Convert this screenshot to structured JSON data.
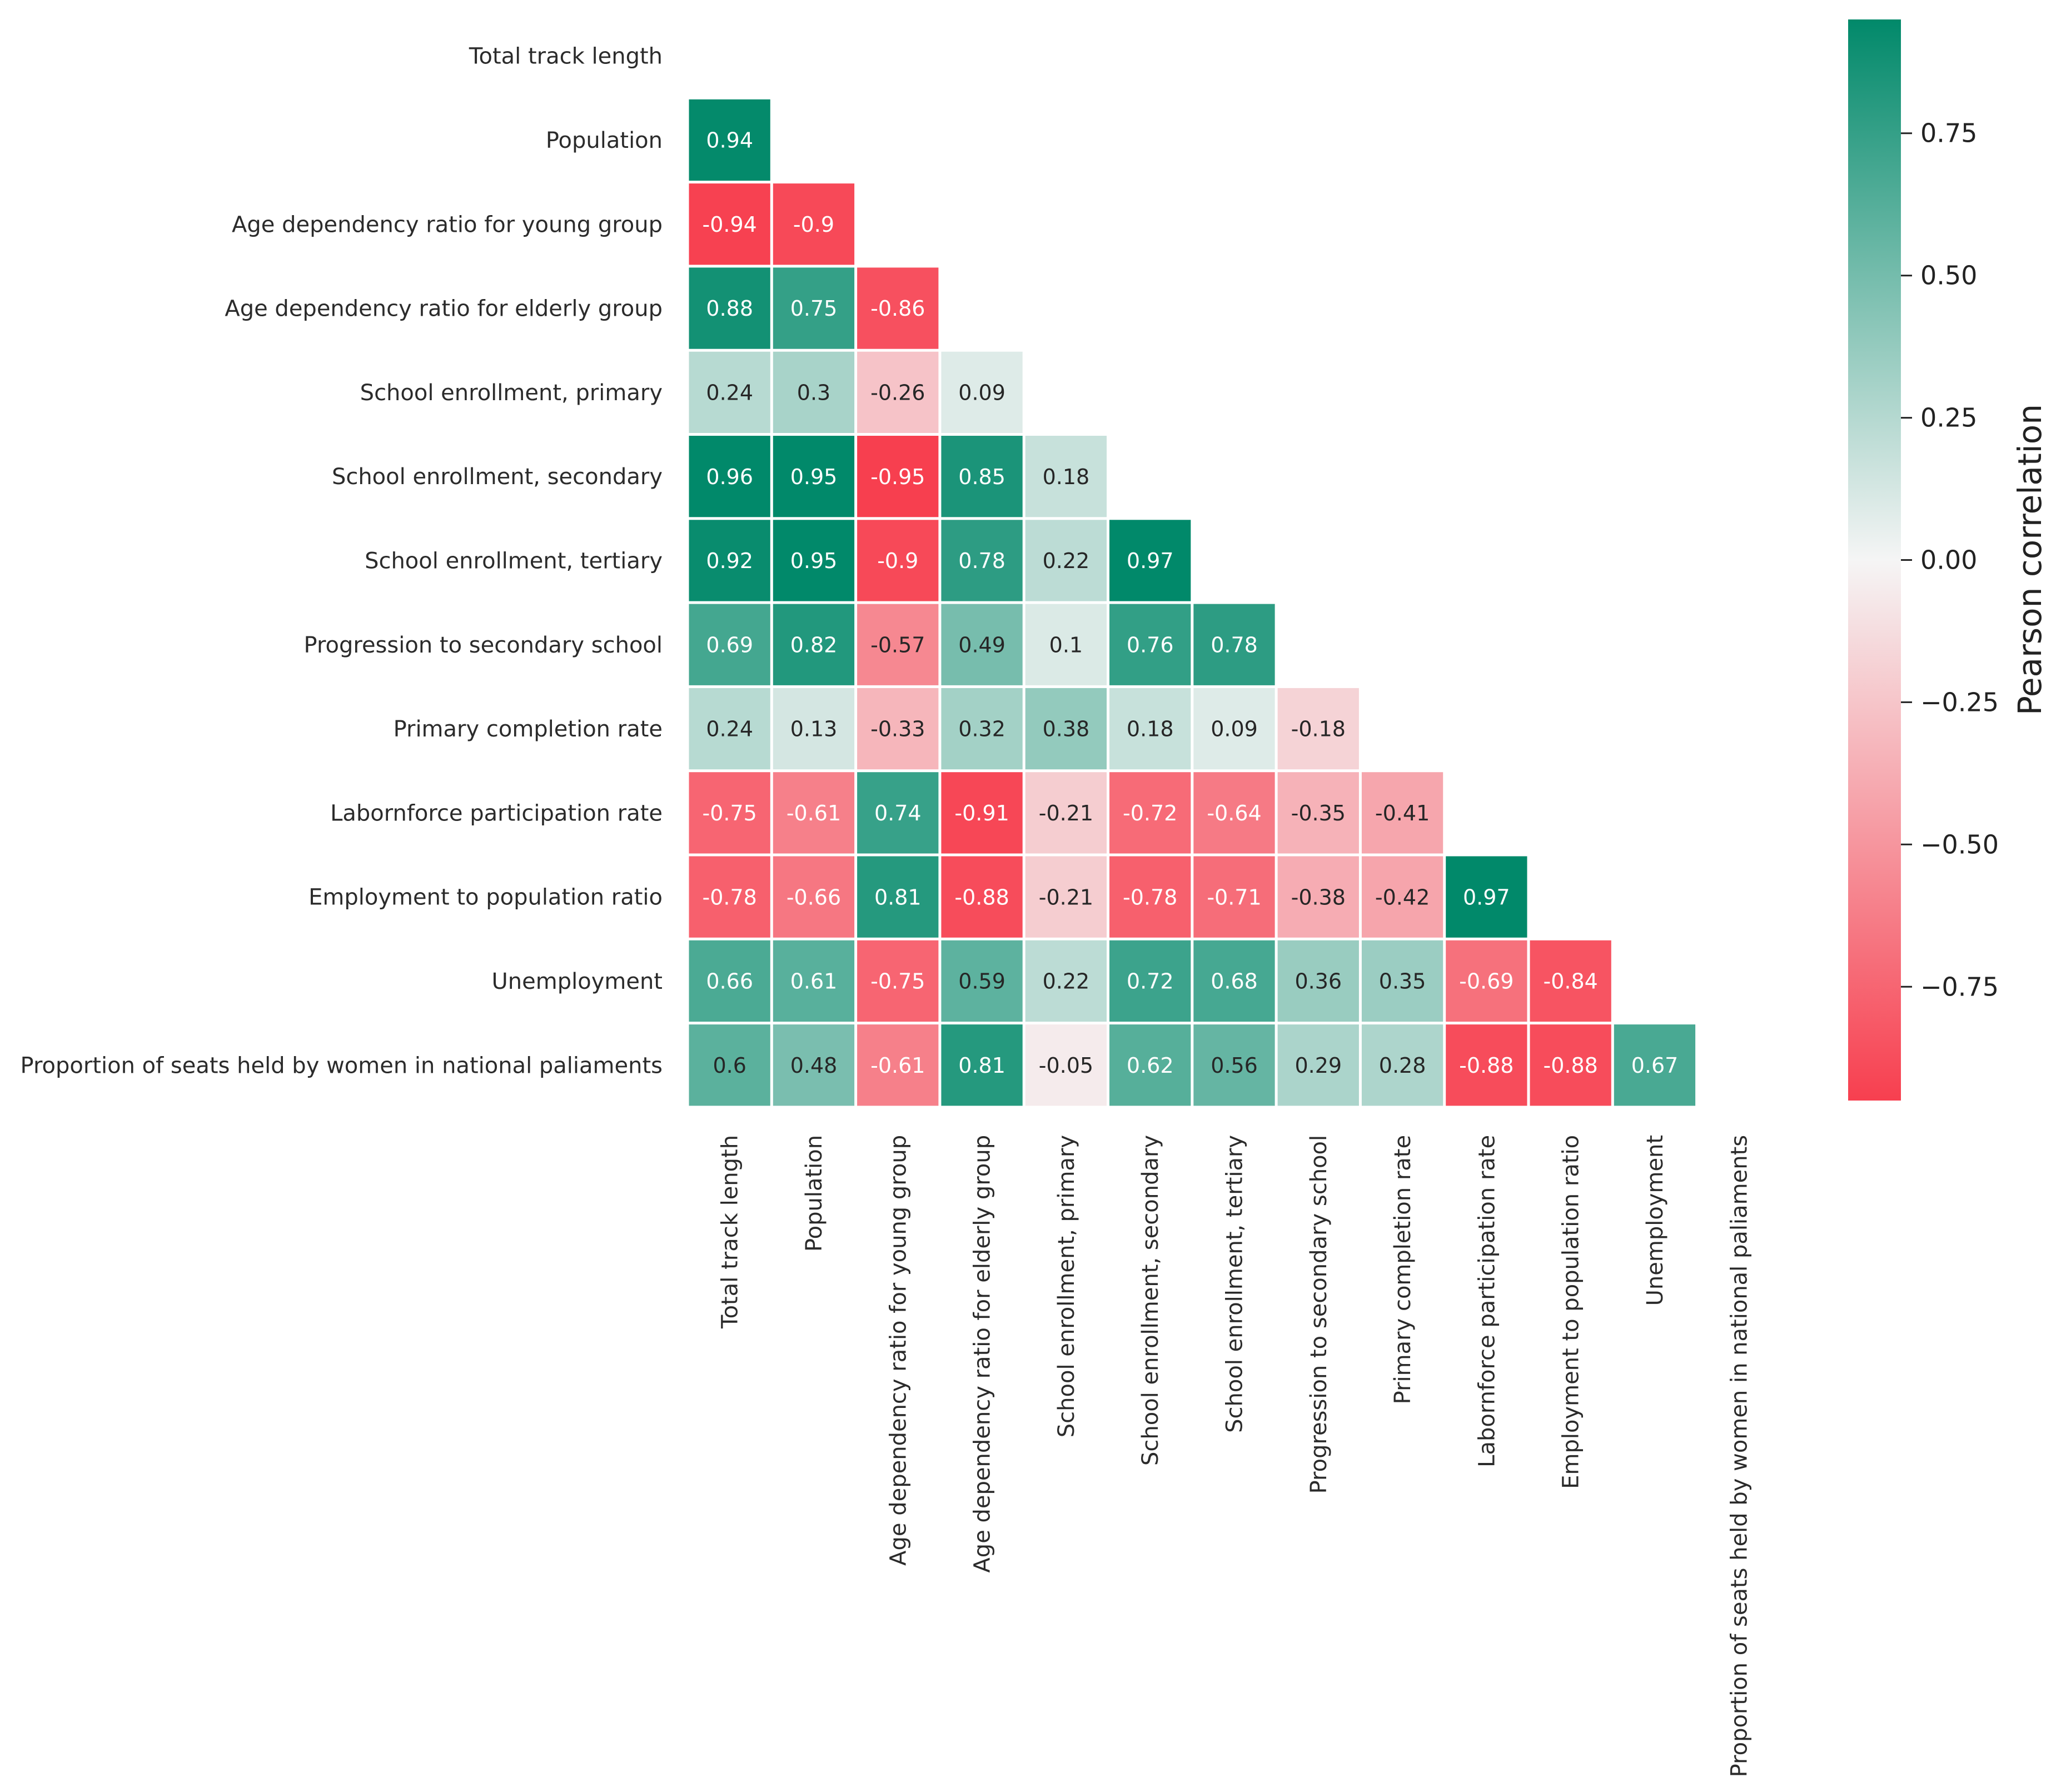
{
  "chart_data": {
    "type": "heatmap",
    "variables": [
      "Total track length",
      "Population",
      "Age dependency ratio for young group",
      "Age dependency ratio for elderly group",
      "School enrollment, primary",
      "School enrollment, secondary",
      "School enrollment, tertiary",
      "Progression to secondary school",
      "Primary completion rate",
      "Labornforce participation rate",
      "Employment to population ratio",
      "Unemployment",
      "Proportion of seats held by women in national paliaments"
    ],
    "matrix": [
      [],
      [
        0.94
      ],
      [
        -0.94,
        -0.9
      ],
      [
        0.88,
        0.75,
        -0.86
      ],
      [
        0.24,
        0.3,
        -0.26,
        0.09
      ],
      [
        0.96,
        0.95,
        -0.95,
        0.85,
        0.18
      ],
      [
        0.92,
        0.95,
        -0.9,
        0.78,
        0.22,
        0.97
      ],
      [
        0.69,
        0.82,
        -0.57,
        0.49,
        0.1,
        0.76,
        0.78
      ],
      [
        0.24,
        0.13,
        -0.33,
        0.32,
        0.38,
        0.18,
        0.09,
        -0.18
      ],
      [
        -0.75,
        -0.61,
        0.74,
        -0.91,
        -0.21,
        -0.72,
        -0.64,
        -0.35,
        -0.41
      ],
      [
        -0.78,
        -0.66,
        0.81,
        -0.88,
        -0.21,
        -0.78,
        -0.71,
        -0.38,
        -0.42,
        0.97
      ],
      [
        0.66,
        0.61,
        -0.75,
        0.59,
        0.22,
        0.72,
        0.68,
        0.36,
        0.35,
        -0.69,
        -0.84
      ],
      [
        0.6,
        0.48,
        -0.61,
        0.81,
        -0.05,
        0.62,
        0.56,
        0.29,
        0.28,
        -0.88,
        -0.88,
        0.67
      ]
    ],
    "colorbar": {
      "label": "Pearson correlation",
      "range": [
        -0.95,
        0.95
      ],
      "ticks": [
        -0.75,
        -0.5,
        -0.25,
        0.0,
        0.25,
        0.5,
        0.75
      ],
      "tick_labels": [
        "−0.75",
        "−0.50",
        "−0.25",
        "0.00",
        "0.25",
        "0.50",
        "0.75"
      ],
      "colors": {
        "negative": "#f73f4f",
        "zero": "#f5f5f5",
        "positive": "#01896a"
      }
    },
    "mask": "upper-triangle-including-diagonal",
    "cell_border_color": "#ffffff"
  }
}
